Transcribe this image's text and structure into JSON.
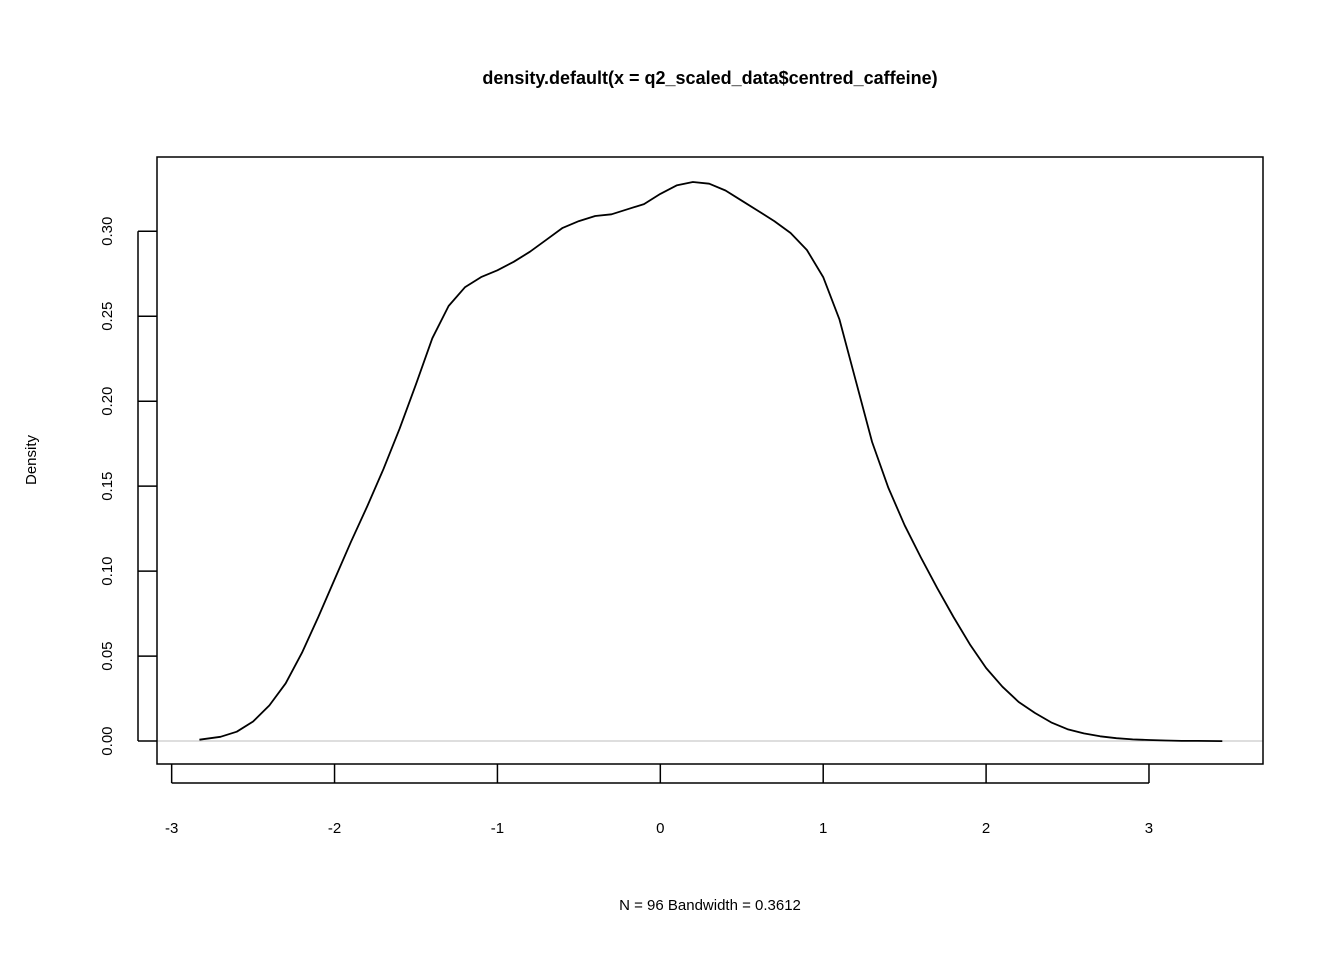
{
  "chart_data": {
    "type": "line",
    "title": "density.default(x = q2_scaled_data$centred_caffeine)",
    "xlabel": "N = 96   Bandwidth = 0.3612",
    "ylabel": "Density",
    "xlim": [
      -3.09,
      3.7
    ],
    "ylim": [
      -0.0135,
      0.3437
    ],
    "x_ticks": [
      "-3",
      "-2",
      "-1",
      "0",
      "1",
      "2",
      "3"
    ],
    "x_tick_values": [
      -3,
      -2,
      -1,
      0,
      1,
      2,
      3
    ],
    "y_ticks": [
      "0.00",
      "0.05",
      "0.10",
      "0.15",
      "0.20",
      "0.25",
      "0.30"
    ],
    "y_tick_values": [
      0,
      0.05,
      0.1,
      0.15,
      0.2,
      0.25,
      0.3
    ],
    "baseline": 0,
    "grid": false,
    "colors": {
      "line": "#000000",
      "baseline": "#bebebe"
    },
    "series": [
      {
        "x": [
          -2.83,
          -2.7,
          -2.6,
          -2.5,
          -2.4,
          -2.3,
          -2.2,
          -2.1,
          -2.0,
          -1.9,
          -1.8,
          -1.7,
          -1.6,
          -1.5,
          -1.4,
          -1.3,
          -1.2,
          -1.1,
          -1.0,
          -0.9,
          -0.8,
          -0.7,
          -0.6,
          -0.5,
          -0.4,
          -0.3,
          -0.2,
          -0.1,
          0.0,
          0.1,
          0.2,
          0.3,
          0.4,
          0.5,
          0.6,
          0.7,
          0.8,
          0.9,
          1.0,
          1.1,
          1.2,
          1.3,
          1.4,
          1.5,
          1.6,
          1.7,
          1.8,
          1.9,
          2.0,
          2.1,
          2.2,
          2.3,
          2.4,
          2.5,
          2.6,
          2.7,
          2.8,
          2.9,
          3.0,
          3.1,
          3.2,
          3.3,
          3.45
        ],
        "y": [
          0.0008,
          0.0025,
          0.0055,
          0.0115,
          0.021,
          0.034,
          0.052,
          0.073,
          0.095,
          0.117,
          0.138,
          0.16,
          0.184,
          0.21,
          0.237,
          0.256,
          0.267,
          0.273,
          0.277,
          0.282,
          0.288,
          0.295,
          0.302,
          0.306,
          0.309,
          0.31,
          0.313,
          0.316,
          0.322,
          0.327,
          0.329,
          0.328,
          0.324,
          0.318,
          0.312,
          0.306,
          0.299,
          0.289,
          0.273,
          0.248,
          0.212,
          0.176,
          0.149,
          0.127,
          0.108,
          0.09,
          0.073,
          0.057,
          0.043,
          0.032,
          0.023,
          0.0165,
          0.011,
          0.007,
          0.0045,
          0.0028,
          0.0017,
          0.001,
          0.0006,
          0.0003,
          0.0001,
          0.0001,
          0.0
        ]
      }
    ]
  }
}
